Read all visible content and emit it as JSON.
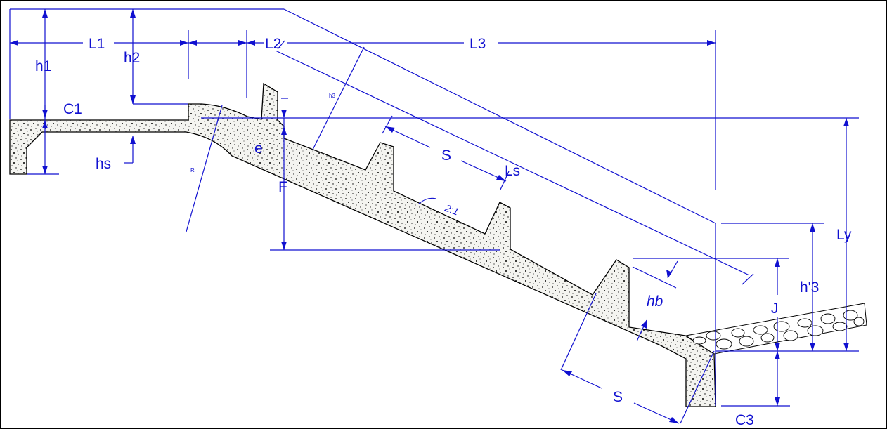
{
  "labels": {
    "h1": "h1",
    "L1": "L1",
    "h2": "h2",
    "L2": "L2",
    "L3": "L3",
    "C1": "C1",
    "hs": "hs",
    "e": "e",
    "F": "F",
    "S_upper": "S",
    "Ls": "Ls",
    "slope": "2:1",
    "Ly": "Ly",
    "h3": "h'3",
    "J": "J",
    "hb": "hb",
    "S_lower": "S",
    "C3": "C3",
    "small_r": "R",
    "small_h3": "h3"
  },
  "colors": {
    "dimension": "#1010d0",
    "outline": "#000000",
    "concrete_fill": "#f4f4f0"
  }
}
